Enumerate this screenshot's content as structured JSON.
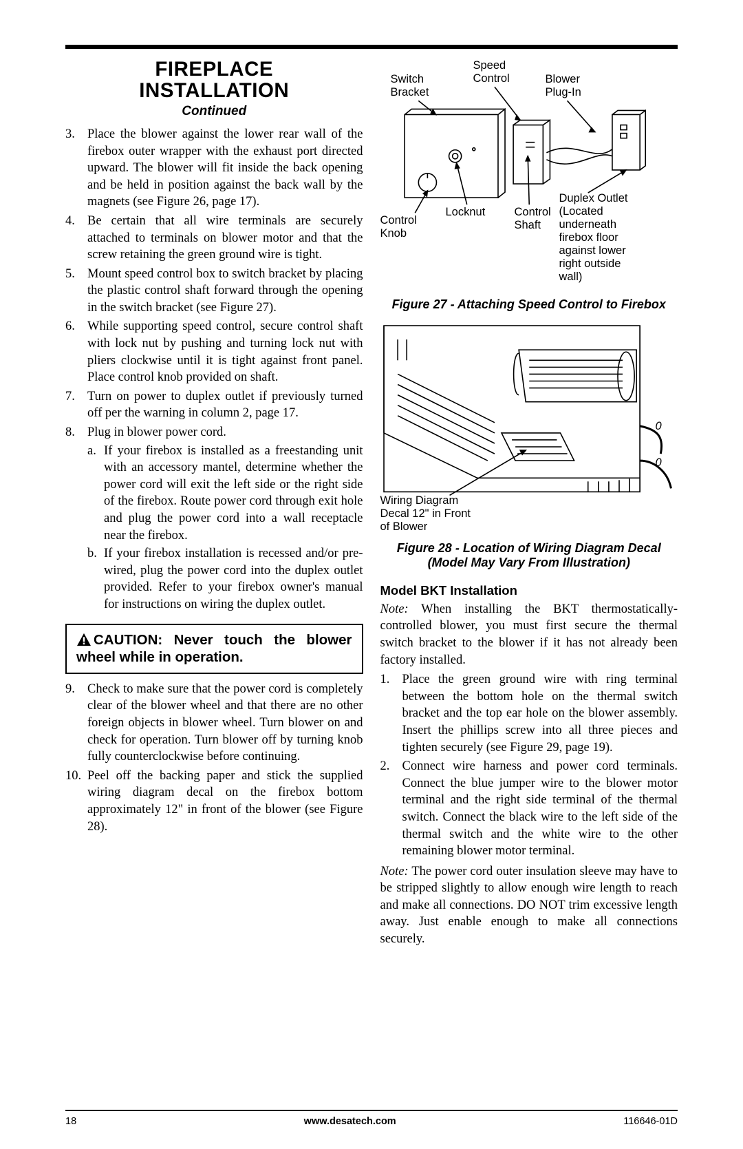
{
  "title_line1": "FIREPLACE",
  "title_line2": "INSTALLATION",
  "continued": "Continued",
  "left_steps": [
    {
      "n": "3.",
      "t": "Place the blower against the lower rear wall of the firebox outer wrapper with the exhaust port directed upward. The blower will fit inside the back opening and be held in position against the back wall by the magnets (see Figure 26, page 17)."
    },
    {
      "n": "4.",
      "t": "Be certain that all wire terminals are securely attached to terminals on blower motor and that the screw retaining the green ground wire is tight."
    },
    {
      "n": "5.",
      "t": "Mount speed control box to switch bracket by placing the plastic control shaft forward through the opening in the switch bracket (see Figure 27)."
    },
    {
      "n": "6.",
      "t": "While supporting speed control, secure control shaft with lock nut by pushing and turning lock nut with pliers clockwise until it is tight against front panel. Place control knob provided on shaft."
    },
    {
      "n": "7.",
      "t": "Turn on power to duplex outlet if previously turned off per the warning in column 2, page 17."
    },
    {
      "n": "8.",
      "t": "Plug in blower power cord.",
      "sub": [
        {
          "m": "a.",
          "t": "If your firebox is installed as a freestanding unit with an accessory mantel, determine whether the power cord will exit the left side or the right side of the firebox. Route power cord through exit hole and plug the power cord into a wall receptacle near the firebox."
        },
        {
          "m": "b.",
          "t": "If your firebox installation is recessed and/or pre-wired, plug the power cord into the duplex outlet provided. Refer to your firebox owner's manual for instructions on wiring the duplex outlet."
        }
      ]
    }
  ],
  "caution": "CAUTION: Never touch the blower wheel while in operation.",
  "left_steps2": [
    {
      "n": "9.",
      "t": "Check to make sure that the power cord is completely clear of the blower wheel and that there are no other foreign objects in blower wheel. Turn blower on and check for operation. Turn blower off by turning knob fully counterclockwise before continuing."
    },
    {
      "n": "10.",
      "t": "Peel off the backing paper and stick the supplied wiring diagram decal on the firebox bottom approximately 12\" in front of the blower (see Figure 28)."
    }
  ],
  "fig27_labels": {
    "switch_bracket": "Switch\nBracket",
    "speed_control": "Speed\nControl",
    "blower_plugin": "Blower\nPlug-In",
    "locknut": "Locknut",
    "control_knob": "Control\nKnob",
    "control_shaft": "Control\nShaft",
    "duplex_outlet": "Duplex Outlet\n(Located\nunderneath\nfirebox floor\nagainst lower\nright outside\nwall)"
  },
  "figcap27": "Figure 27 - Attaching Speed Control to Firebox",
  "fig28_labels": {
    "wiring_decal": "Wiring Diagram\nDecal 12\" in Front\nof Blower",
    "zero1": "0",
    "zero2": "0"
  },
  "figcap28": "Figure 28 - Location of Wiring Diagram Decal (Model May Vary From Illustration)",
  "bkt_head": "Model BKT Installation",
  "bkt_note_label": "Note:",
  "bkt_note": " When installing the BKT thermostatically-controlled blower, you must first secure the thermal switch bracket to the blower if it has not already been factory installed.",
  "bkt_steps": [
    {
      "n": "1.",
      "t": "Place the green ground wire with ring terminal between the bottom hole on the thermal switch bracket and the top ear hole on the blower assembly. Insert the phillips screw into all three pieces and tighten securely (see Figure 29, page 19)."
    },
    {
      "n": "2.",
      "t": "Connect wire harness and power cord terminals. Connect the blue jumper wire to the blower motor terminal and the right side terminal of the thermal switch. Connect the black wire to the left side of the thermal switch and the white wire to the other remaining blower motor terminal."
    }
  ],
  "bkt_note2_label": "Note:",
  "bkt_note2": " The power cord outer insulation sleeve may have to be stripped slightly to allow enough wire length to reach and make all connections. DO NOT trim excessive length away. Just enable enough to make all connections securely.",
  "footer": {
    "page": "18",
    "url": "www.desatech.com",
    "code": "116646-01D"
  }
}
